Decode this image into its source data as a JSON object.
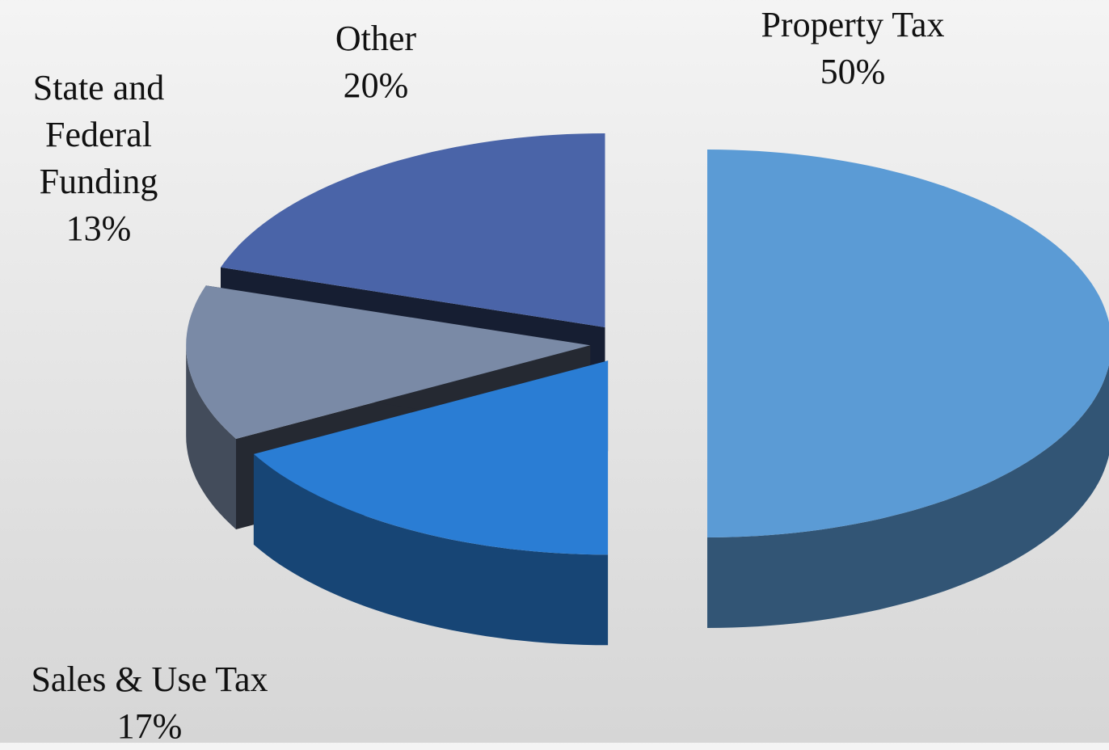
{
  "chart_data": {
    "type": "pie",
    "categories": [
      "Property Tax",
      "Sales & Use Tax",
      "State and Federal Funding",
      "Other"
    ],
    "values": [
      50,
      17,
      13,
      20
    ],
    "value_labels": [
      "50%",
      "17%",
      "13%",
      "20%"
    ],
    "colors": [
      "#5b9bd5",
      "#2a7dd4",
      "#7a8aa6",
      "#4a64a8"
    ]
  }
}
